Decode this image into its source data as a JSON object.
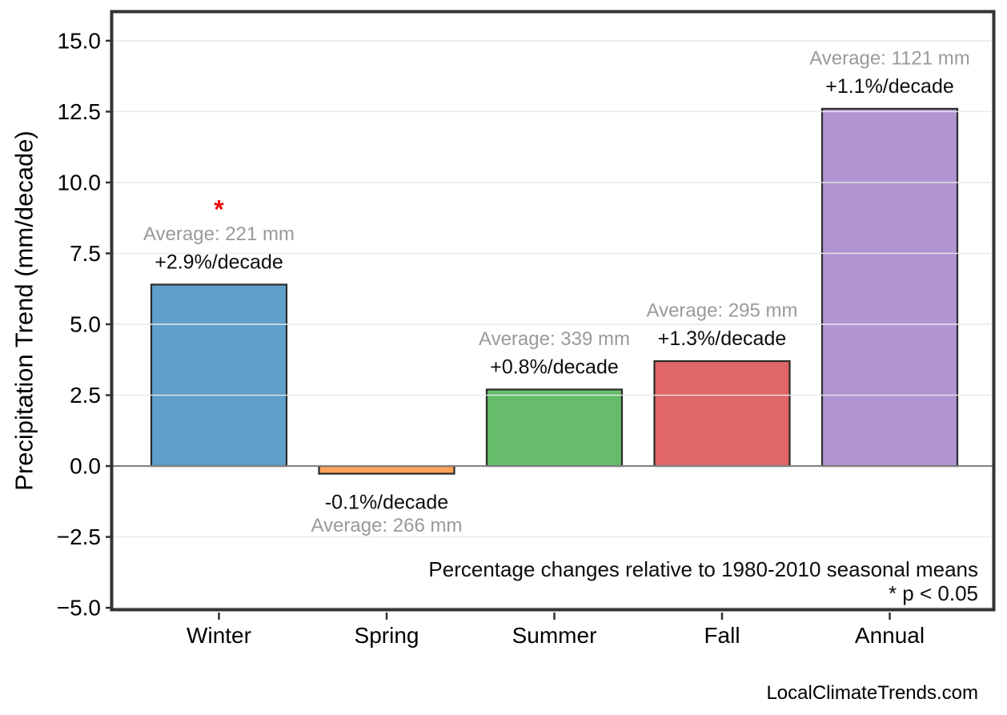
{
  "page": {
    "watermark": "LocalClimateTrends.com"
  },
  "chart_data": {
    "type": "bar",
    "title": "",
    "xlabel": "",
    "ylabel": "Precipitation Trend (mm/decade)",
    "categories": [
      "Winter",
      "Spring",
      "Summer",
      "Fall",
      "Annual"
    ],
    "values": [
      6.4,
      -0.27,
      2.7,
      3.7,
      12.6
    ],
    "bar_colors": [
      "#5f9fc9",
      "#fca45a",
      "#66bc6a",
      "#e06667",
      "#b195d1"
    ],
    "bar_edge_color": "#2b2b2b",
    "ylim": [
      -5.11,
      16.07
    ],
    "yticks": [
      -5.0,
      -2.5,
      0.0,
      2.5,
      5.0,
      7.5,
      10.0,
      12.5,
      15.0
    ],
    "ytick_labels": [
      "−5.0",
      "−2.5",
      "0.0",
      "2.5",
      "5.0",
      "7.5",
      "10.0",
      "12.5",
      "15.0"
    ],
    "grid": true,
    "grid_axis": "y",
    "zero_line": true,
    "legend": "none",
    "annotations": [
      {
        "category": "Winter",
        "average_label": "Average: 221 mm",
        "trend_label": "+2.9%/decade",
        "significant": true
      },
      {
        "category": "Spring",
        "average_label": "Average: 266 mm",
        "trend_label": "-0.1%/decade",
        "significant": false
      },
      {
        "category": "Summer",
        "average_label": "Average: 339 mm",
        "trend_label": "+0.8%/decade",
        "significant": false
      },
      {
        "category": "Fall",
        "average_label": "Average: 295 mm",
        "trend_label": "+1.3%/decade",
        "significant": false
      },
      {
        "category": "Annual",
        "average_label": "Average: 1121 mm",
        "trend_label": "+1.1%/decade",
        "significant": false
      }
    ],
    "significance_marker": "*",
    "significance_color": "#f00a0a",
    "average_label_color": "#9a9a9a",
    "trend_label_color": "#0d0d0d",
    "note_line1": "Percentage changes relative to 1980-2010 seasonal means",
    "note_line2": "* p < 0.05"
  }
}
